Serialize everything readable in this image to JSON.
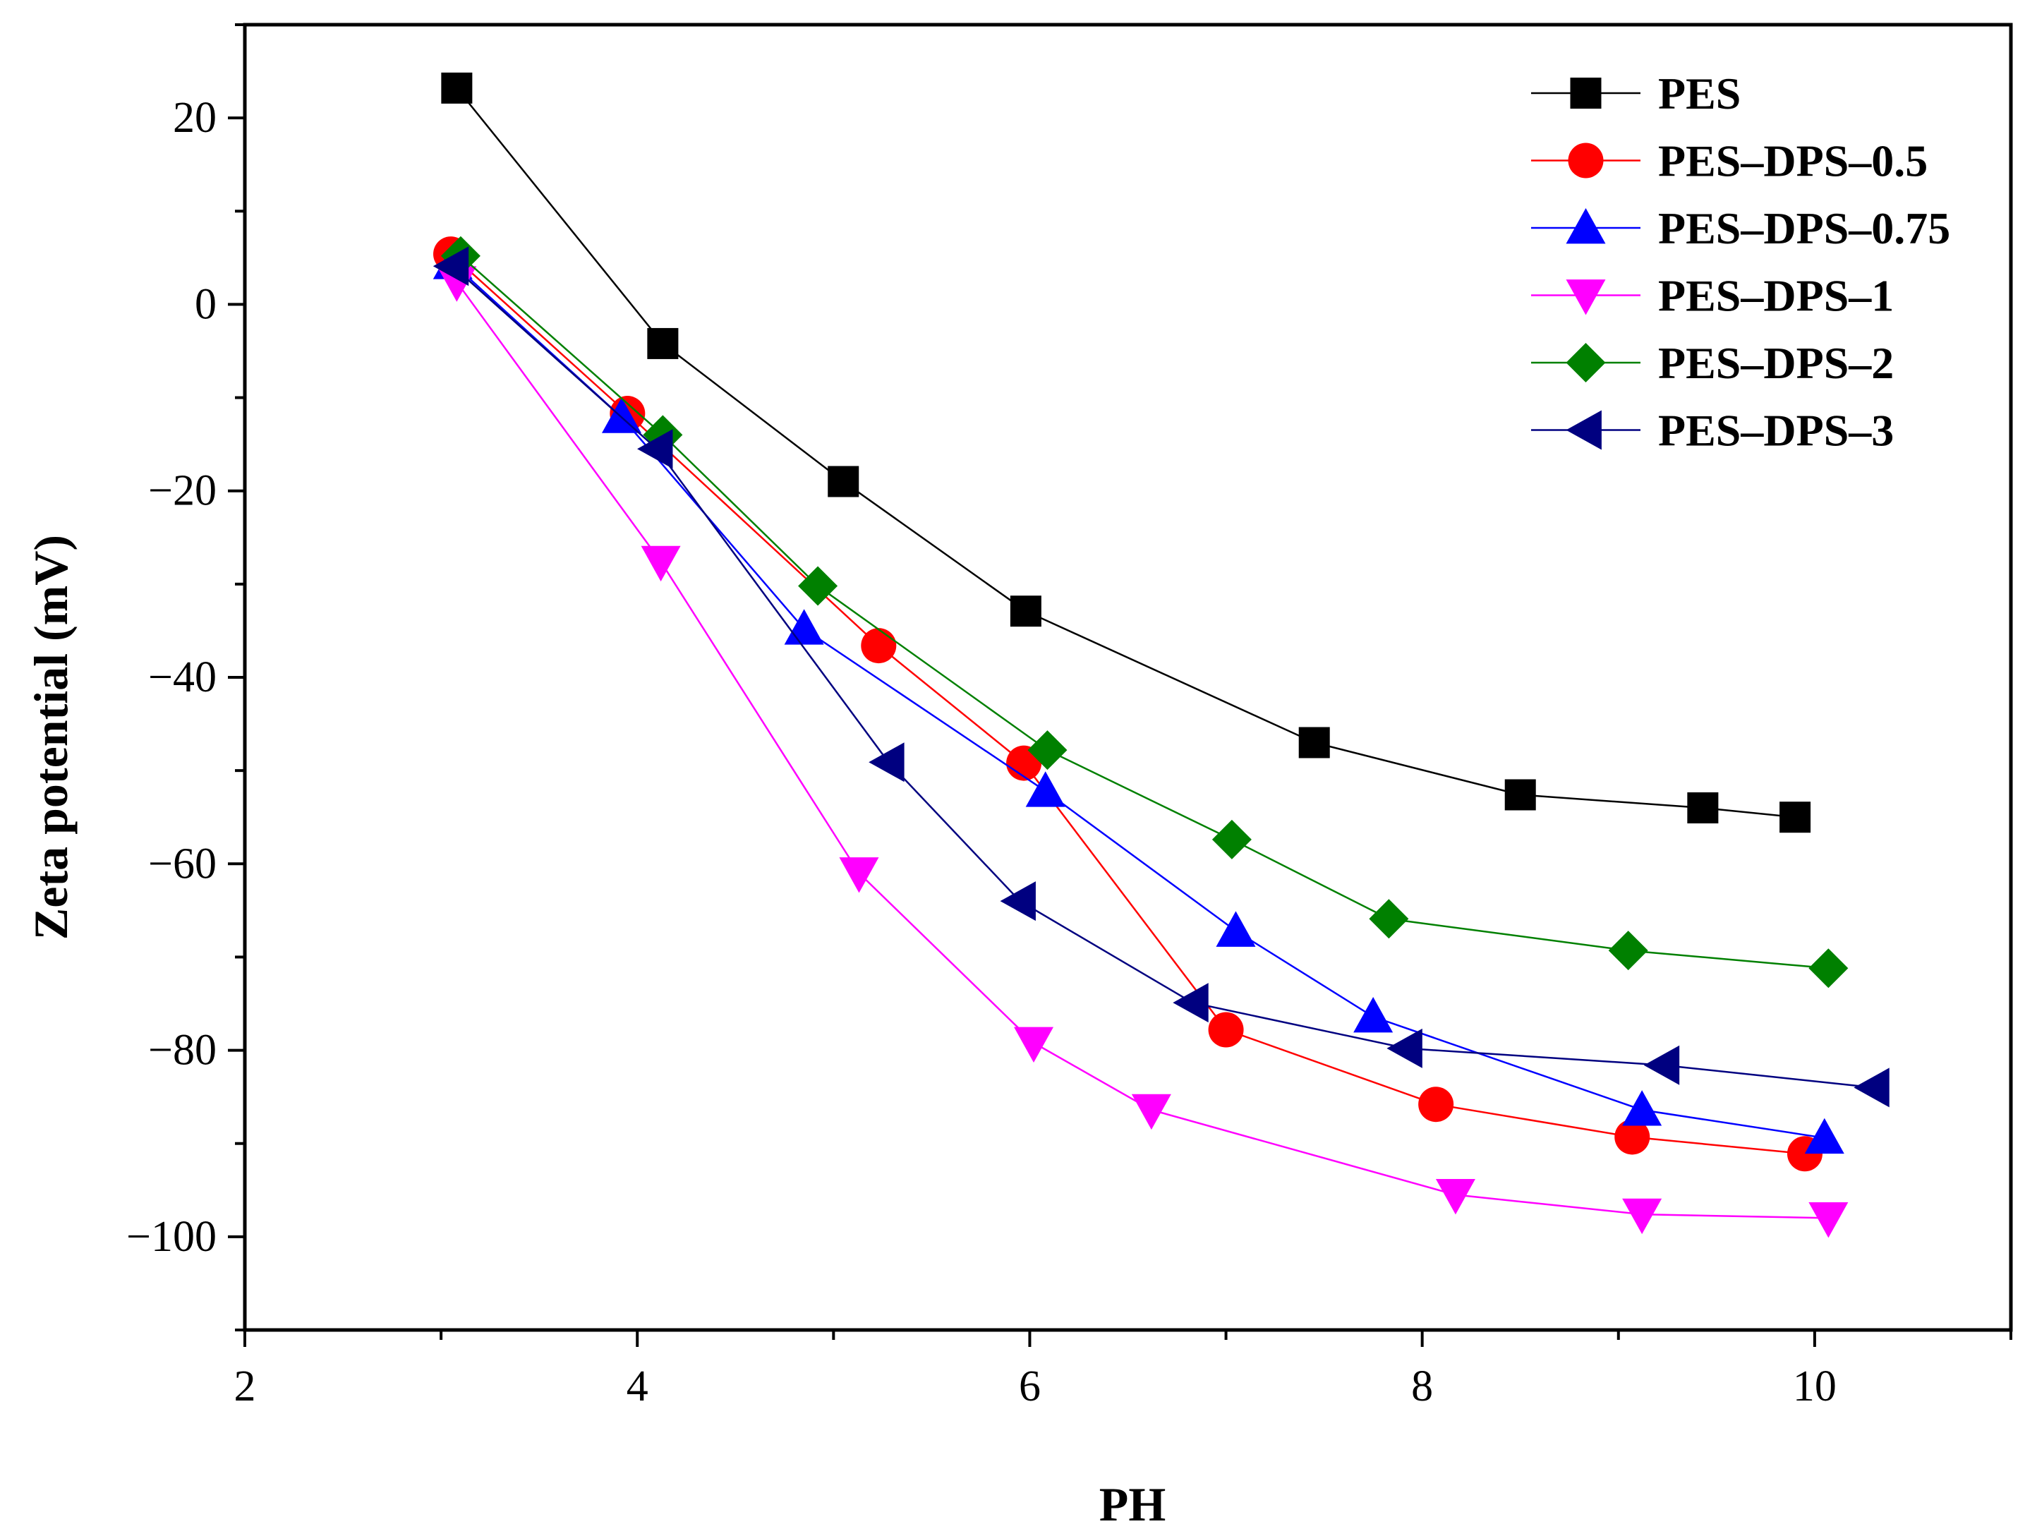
{
  "chart_data": {
    "type": "line",
    "title": "",
    "xlabel": "PH",
    "ylabel": "Zeta potential (mV)",
    "xlim": [
      2,
      11
    ],
    "ylim": [
      -110,
      30
    ],
    "xticks": [
      2,
      4,
      6,
      8,
      10
    ],
    "yticks": [
      20,
      0,
      -20,
      -40,
      -60,
      -80,
      -100
    ],
    "xtick_labels": [
      "2",
      "4",
      "6",
      "8",
      "10"
    ],
    "ytick_labels": [
      "20",
      "0",
      "−20",
      "−40",
      "−60",
      "−80",
      "−100"
    ],
    "grid": false,
    "legend_position": "top-right",
    "series": [
      {
        "name": "PES",
        "color": "#000000",
        "marker": "square",
        "x": [
          3.08,
          4.13,
          5.05,
          5.98,
          7.45,
          8.5,
          9.43,
          9.9
        ],
        "y": [
          23.2,
          -4.2,
          -19.0,
          -32.9,
          -47.0,
          -52.6,
          -54.0,
          -55.0
        ]
      },
      {
        "name": "PES–DPS–0.5",
        "color": "#ff0000",
        "marker": "circle",
        "x": [
          3.05,
          3.95,
          5.23,
          5.97,
          7.0,
          8.07,
          9.07,
          9.95
        ],
        "y": [
          5.4,
          -11.7,
          -36.6,
          -49.2,
          -77.8,
          -85.8,
          -89.3,
          -91.1
        ]
      },
      {
        "name": "PES–DPS–0.75",
        "color": "#0000ff",
        "marker": "triangle-up",
        "x": [
          3.06,
          3.92,
          4.85,
          6.08,
          7.05,
          7.75,
          9.12,
          10.05
        ],
        "y": [
          4.4,
          -12.1,
          -34.8,
          -52.2,
          -67.2,
          -76.4,
          -86.4,
          -89.4
        ]
      },
      {
        "name": "PES–DPS–1",
        "color": "#ff00ff",
        "marker": "triangle-down",
        "x": [
          3.08,
          4.12,
          5.13,
          6.02,
          6.62,
          8.17,
          9.12,
          10.07
        ],
        "y": [
          2.4,
          -27.6,
          -61.0,
          -79.2,
          -86.4,
          -95.5,
          -97.6,
          -98.0
        ]
      },
      {
        "name": "PES–DPS–2",
        "color": "#008000",
        "marker": "diamond",
        "x": [
          3.1,
          4.13,
          4.92,
          6.09,
          7.03,
          7.83,
          9.05,
          10.07
        ],
        "y": [
          5.2,
          -14.0,
          -30.2,
          -47.8,
          -57.4,
          -65.9,
          -69.3,
          -71.2
        ]
      },
      {
        "name": "PES–DPS–3",
        "color": "#000080",
        "marker": "triangle-left",
        "x": [
          3.06,
          4.1,
          5.28,
          5.95,
          6.83,
          7.92,
          9.23,
          10.3
        ],
        "y": [
          4.1,
          -15.5,
          -49.1,
          -64.0,
          -74.9,
          -79.8,
          -81.6,
          -84.0
        ]
      }
    ]
  }
}
